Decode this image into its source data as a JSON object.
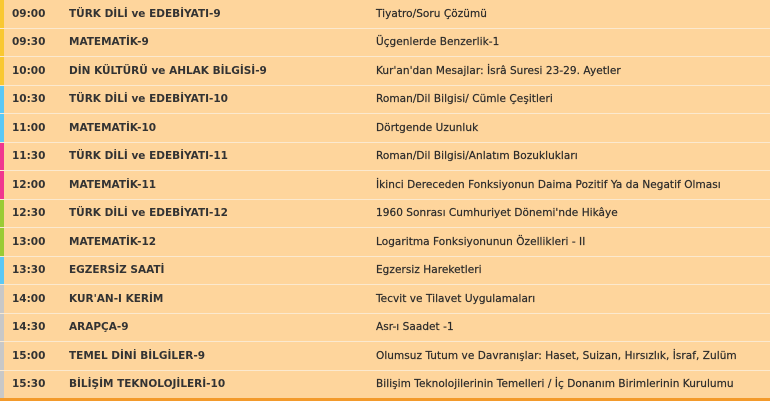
{
  "colors": {
    "background": "#fed59c",
    "bottom_border": "#f39a2b",
    "grade9": "#f9c832",
    "grade10": "#5bc8f5",
    "grade11": "#f0368f",
    "grade12": "#9acb34",
    "other": "#c8c8c8"
  },
  "schedule": [
    {
      "time": "09:00",
      "subject": "TÜRK DİLİ ve EDEBİYATI-9",
      "topic": "Tiyatro/Soru Çözümü",
      "color": "#f9c832"
    },
    {
      "time": "09:30",
      "subject": "MATEMATİK-9",
      "topic": "Üçgenlerde Benzerlik-1",
      "color": "#f9c832"
    },
    {
      "time": "10:00",
      "subject": "DİN KÜLTÜRÜ ve AHLAK BİLGİSİ-9",
      "topic": "Kur'an'dan Mesajlar: İsrâ Suresi 23-29. Ayetler",
      "color": "#f9c832"
    },
    {
      "time": "10:30",
      "subject": "TÜRK DİLİ ve EDEBİYATI-10",
      "topic": "Roman/Dil Bilgisi/ Cümle Çeşitleri",
      "color": "#5bc8f5"
    },
    {
      "time": "11:00",
      "subject": "MATEMATİK-10",
      "topic": "Dörtgende Uzunluk",
      "color": "#5bc8f5"
    },
    {
      "time": "11:30",
      "subject": "TÜRK DİLİ ve EDEBİYATI-11",
      "topic": "Roman/Dil Bilgisi/Anlatım Bozuklukları",
      "color": "#f0368f"
    },
    {
      "time": "12:00",
      "subject": "MATEMATİK-11",
      "topic": "İkinci Dereceden Fonksiyonun Daima Pozitif Ya da Negatif Olması",
      "color": "#f0368f"
    },
    {
      "time": "12:30",
      "subject": "TÜRK DİLİ ve EDEBİYATI-12",
      "topic": "1960 Sonrası Cumhuriyet Dönemi'nde Hikâye",
      "color": "#9acb34"
    },
    {
      "time": "13:00",
      "subject": "MATEMATİK-12",
      "topic": "Logaritma Fonksiyonunun Özellikleri - II",
      "color": "#9acb34"
    },
    {
      "time": "13:30",
      "subject": "EGZERSİZ SAATİ",
      "topic": "Egzersiz Hareketleri",
      "color": "#5bc8f5"
    },
    {
      "time": "14:00",
      "subject": "KUR'AN-I KERİM",
      "topic": "Tecvit ve Tilavet Uygulamaları",
      "color": "#c8c8c8"
    },
    {
      "time": "14:30",
      "subject": "ARAPÇA-9",
      "topic": "Asr-ı Saadet -1",
      "color": "#c8c8c8"
    },
    {
      "time": "15:00",
      "subject": "TEMEL DİNİ BİLGİLER-9",
      "topic": "Olumsuz Tutum ve Davranışlar: Haset, Suizan, Hırsızlık, İsraf, Zulüm",
      "color": "#c8c8c8"
    },
    {
      "time": "15:30",
      "subject": "BİLİŞİM TEKNOLOJİLERİ-10",
      "topic": "Bilişim Teknolojilerinin Temelleri / İç Donanım Birimlerinin Kurulumu",
      "color": "#c8c8c8"
    }
  ]
}
